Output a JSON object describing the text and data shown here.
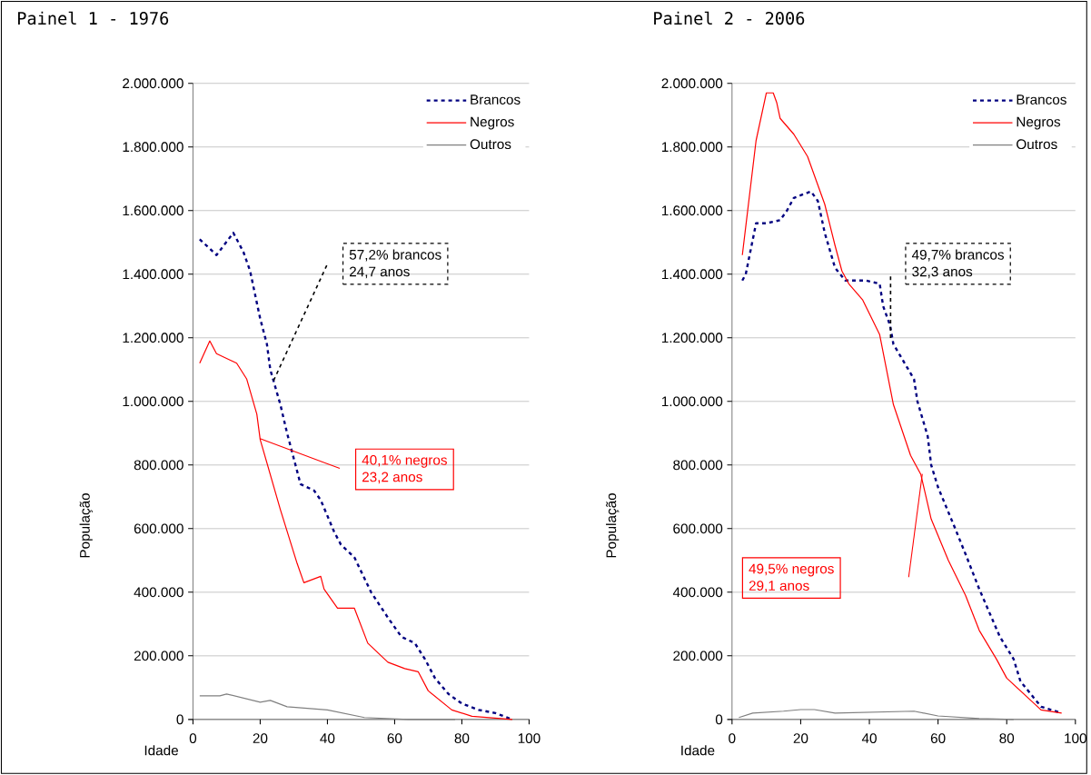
{
  "chart_data": [
    {
      "type": "line",
      "title": "Painel 1 - 1976",
      "xlabel": "Idade",
      "ylabel": "População",
      "xlim": [
        0,
        100
      ],
      "ylim": [
        0,
        2000000
      ],
      "xticks": [
        0,
        20,
        40,
        60,
        80,
        100
      ],
      "yticks": [
        {
          "value": 0,
          "label": "0"
        },
        {
          "value": 200000,
          "label": "200.000"
        },
        {
          "value": 400000,
          "label": "400.000"
        },
        {
          "value": 600000,
          "label": "600.000"
        },
        {
          "value": 800000,
          "label": "800.000"
        },
        {
          "value": 1000000,
          "label": "1.000.000"
        },
        {
          "value": 1200000,
          "label": "1.200.000"
        },
        {
          "value": 1400000,
          "label": "1.400.000"
        },
        {
          "value": 1600000,
          "label": "1.600.000"
        },
        {
          "value": 1800000,
          "label": "1.800.000"
        },
        {
          "value": 2000000,
          "label": "2.000.000"
        }
      ],
      "grid": "y",
      "legend": "top right",
      "series": [
        {
          "name": "Brancos",
          "color": "#000080",
          "line_style": "dashed",
          "x": [
            2,
            7,
            12,
            15,
            17,
            20,
            22,
            23,
            26,
            28,
            30,
            32,
            36,
            38,
            42,
            44,
            48,
            53,
            58,
            62,
            66,
            69,
            72,
            76,
            80,
            85,
            90,
            95
          ],
          "values": [
            1510000,
            1460000,
            1530000,
            1470000,
            1410000,
            1260000,
            1180000,
            1100000,
            990000,
            900000,
            820000,
            740000,
            720000,
            690000,
            590000,
            550000,
            510000,
            400000,
            320000,
            260000,
            240000,
            190000,
            130000,
            80000,
            50000,
            30000,
            20000,
            0
          ]
        },
        {
          "name": "Negros",
          "color": "#ff0000",
          "line_style": "solid",
          "x": [
            2,
            5,
            7,
            13,
            16,
            19,
            20,
            26,
            31,
            33,
            38,
            39,
            43,
            48,
            52,
            58,
            63,
            67,
            70,
            77,
            83,
            95
          ],
          "values": [
            1120000,
            1190000,
            1150000,
            1120000,
            1070000,
            960000,
            880000,
            660000,
            490000,
            430000,
            450000,
            410000,
            350000,
            350000,
            240000,
            180000,
            160000,
            150000,
            90000,
            30000,
            10000,
            0
          ]
        },
        {
          "name": "Outros",
          "color": "#808080",
          "line_style": "solid",
          "x": [
            2,
            8,
            10,
            20,
            23,
            28,
            40,
            51,
            64,
            78
          ],
          "values": [
            74000,
            74000,
            80000,
            54000,
            60000,
            40000,
            30000,
            6000,
            0,
            0
          ]
        }
      ],
      "annotations": [
        "57,2% brancos",
        "24,7 anos",
        "40,1% negros",
        "23,2 anos"
      ]
    },
    {
      "type": "line",
      "title": "Painel 2 - 2006",
      "xlabel": "Idade",
      "ylabel": "População",
      "xlim": [
        0,
        100
      ],
      "ylim": [
        0,
        2000000
      ],
      "xticks": [
        0,
        20,
        40,
        60,
        80,
        100
      ],
      "yticks": [
        {
          "value": 0,
          "label": "0"
        },
        {
          "value": 200000,
          "label": "200.000"
        },
        {
          "value": 400000,
          "label": "400.000"
        },
        {
          "value": 600000,
          "label": "600.000"
        },
        {
          "value": 800000,
          "label": "800.000"
        },
        {
          "value": 1000000,
          "label": "1.000.000"
        },
        {
          "value": 1200000,
          "label": "1.200.000"
        },
        {
          "value": 1400000,
          "label": "1.400.000"
        },
        {
          "value": 1600000,
          "label": "1.600.000"
        },
        {
          "value": 1800000,
          "label": "1.800.000"
        },
        {
          "value": 2000000,
          "label": "2.000.000"
        }
      ],
      "grid": "y",
      "legend": "top right",
      "series": [
        {
          "name": "Brancos",
          "color": "#000080",
          "line_style": "dashed",
          "x": [
            3,
            4,
            7,
            10,
            14,
            16,
            18,
            23,
            25,
            27,
            30,
            33,
            39,
            43,
            44,
            46,
            47,
            53,
            54,
            57,
            58,
            60,
            65,
            68,
            72,
            76,
            78,
            82,
            84,
            90,
            96
          ],
          "values": [
            1380000,
            1400000,
            1560000,
            1560000,
            1570000,
            1600000,
            1640000,
            1660000,
            1630000,
            1530000,
            1420000,
            1380000,
            1380000,
            1370000,
            1300000,
            1240000,
            1180000,
            1070000,
            1000000,
            890000,
            800000,
            730000,
            600000,
            520000,
            410000,
            310000,
            260000,
            190000,
            120000,
            40000,
            20000
          ]
        },
        {
          "name": "Negros",
          "color": "#ff0000",
          "line_style": "solid",
          "x": [
            3,
            7,
            10,
            12,
            13,
            14,
            18,
            22,
            27,
            30,
            32,
            34,
            38,
            43,
            47,
            52,
            55,
            58,
            63,
            68,
            72,
            77,
            80,
            86,
            90,
            96
          ],
          "values": [
            1460000,
            1820000,
            1970000,
            1970000,
            1940000,
            1890000,
            1840000,
            1770000,
            1620000,
            1490000,
            1410000,
            1370000,
            1320000,
            1210000,
            990000,
            830000,
            770000,
            630000,
            500000,
            390000,
            280000,
            190000,
            130000,
            70000,
            30000,
            20000
          ]
        },
        {
          "name": "Outros",
          "color": "#808080",
          "line_style": "solid",
          "x": [
            2,
            6,
            15,
            20,
            24,
            30,
            53,
            60,
            72,
            82
          ],
          "values": [
            6000,
            20000,
            26000,
            31000,
            31000,
            20000,
            26000,
            11000,
            3000,
            0
          ]
        }
      ],
      "annotations": [
        "49,7% brancos",
        "32,3 anos",
        "49,5% negros",
        "29,1 anos"
      ]
    }
  ]
}
